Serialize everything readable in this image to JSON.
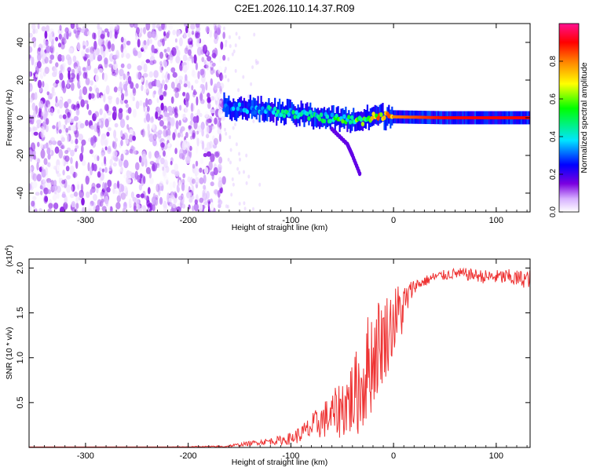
{
  "figure_title": "C2E1.2026.110.14.37.R09",
  "chart_data": [
    {
      "type": "heatmap",
      "title": "C2E1.2026.110.14.37.R09",
      "xlabel": "Height of straight line (km)",
      "ylabel": "Frequency (Hz)",
      "xlim": [
        -355,
        133
      ],
      "ylim": [
        -50,
        50
      ],
      "xticks": [
        -300,
        -200,
        -100,
        0,
        100
      ],
      "xtick_labels": [
        "-300",
        "-200",
        "-100",
        "0",
        "100"
      ],
      "yticks": [
        -40,
        -20,
        0,
        20,
        40
      ],
      "ytick_labels": [
        "-40",
        "-20",
        "0",
        "20",
        "40"
      ],
      "colorbar": {
        "label": "Normalized spectral amplitude",
        "range": [
          0,
          1
        ],
        "ticks": [
          0.0,
          0.2,
          0.4,
          0.6,
          0.8
        ],
        "tick_labels": [
          "0.0",
          "0.2",
          "0.4",
          "0.6",
          "0.8"
        ],
        "colormap": [
          "#ffffff",
          "#d7b0ff",
          "#7b00e0",
          "#0000ff",
          "#00e5ff",
          "#00ff00",
          "#ffff00",
          "#ff8000",
          "#ff0000",
          "#ff1090"
        ]
      },
      "noise_region": {
        "x_range": [
          -355,
          -165
        ],
        "freq_range": [
          -50,
          50
        ],
        "amplitude_range": [
          0.0,
          0.15
        ]
      },
      "signal_trace": [
        {
          "x": -165,
          "freq": 6.0,
          "amplitude": 0.3
        },
        {
          "x": -140,
          "freq": 5.0,
          "amplitude": 0.35
        },
        {
          "x": -110,
          "freq": 3.0,
          "amplitude": 0.4
        },
        {
          "x": -80,
          "freq": 1.0,
          "amplitude": 0.45
        },
        {
          "x": -50,
          "freq": -1.0,
          "amplitude": 0.5
        },
        {
          "x": -30,
          "freq": -1.5,
          "amplitude": 0.55
        },
        {
          "x": -20,
          "freq": 1.0,
          "amplitude": 0.7
        },
        {
          "x": 0,
          "freq": 0.5,
          "amplitude": 0.8
        },
        {
          "x": 50,
          "freq": 0.0,
          "amplitude": 0.9
        },
        {
          "x": 100,
          "freq": 0.0,
          "amplitude": 0.9
        },
        {
          "x": 133,
          "freq": 0.0,
          "amplitude": 0.9
        }
      ],
      "descending_branch": [
        {
          "x": -60,
          "freq": -6
        },
        {
          "x": -45,
          "freq": -14
        },
        {
          "x": -40,
          "freq": -20
        },
        {
          "x": -32,
          "freq": -31
        }
      ]
    },
    {
      "type": "line",
      "title": "",
      "xlabel": "Height of straight line (km)",
      "ylabel": "SNR (10 * v/v)",
      "y_multiplier_label": "(x10",
      "y_multiplier_exponent": "4",
      "y_multiplier_suffix": ")",
      "xlim": [
        -355,
        133
      ],
      "ylim": [
        0,
        2.1
      ],
      "xticks": [
        -300,
        -200,
        -100,
        0,
        100
      ],
      "xtick_labels": [
        "-300",
        "-200",
        "-100",
        "0",
        "100"
      ],
      "yticks": [
        0.5,
        1.0,
        1.5,
        2.0
      ],
      "ytick_labels": [
        "0.5",
        "1.0",
        "1.5",
        "2.0"
      ],
      "series": [
        {
          "name": "SNR",
          "color": "#ee3333",
          "x": [
            -355,
            -250,
            -165,
            -150,
            -130,
            -110,
            -100,
            -90,
            -80,
            -70,
            -60,
            -50,
            -40,
            -30,
            -25,
            -20,
            -15,
            -10,
            -5,
            0,
            5,
            10,
            15,
            20,
            30,
            40,
            50,
            60,
            70,
            80,
            90,
            100,
            110,
            120,
            133
          ],
          "values": [
            0.0,
            0.0,
            0.01,
            0.03,
            0.06,
            0.08,
            0.1,
            0.15,
            0.22,
            0.3,
            0.35,
            0.45,
            0.55,
            0.7,
            0.9,
            1.0,
            1.15,
            1.2,
            1.3,
            1.4,
            1.5,
            1.55,
            1.7,
            1.8,
            1.85,
            1.9,
            1.92,
            1.94,
            1.93,
            1.92,
            1.9,
            1.9,
            1.9,
            1.88,
            1.88
          ],
          "noise_amplitude": [
            0.0,
            0.0,
            0.01,
            0.02,
            0.03,
            0.05,
            0.07,
            0.1,
            0.15,
            0.2,
            0.25,
            0.35,
            0.45,
            0.55,
            0.6,
            0.6,
            0.55,
            0.5,
            0.45,
            0.4,
            0.35,
            0.3,
            0.15,
            0.08,
            0.06,
            0.06,
            0.06,
            0.06,
            0.07,
            0.07,
            0.08,
            0.08,
            0.09,
            0.1,
            0.1
          ]
        }
      ]
    }
  ]
}
